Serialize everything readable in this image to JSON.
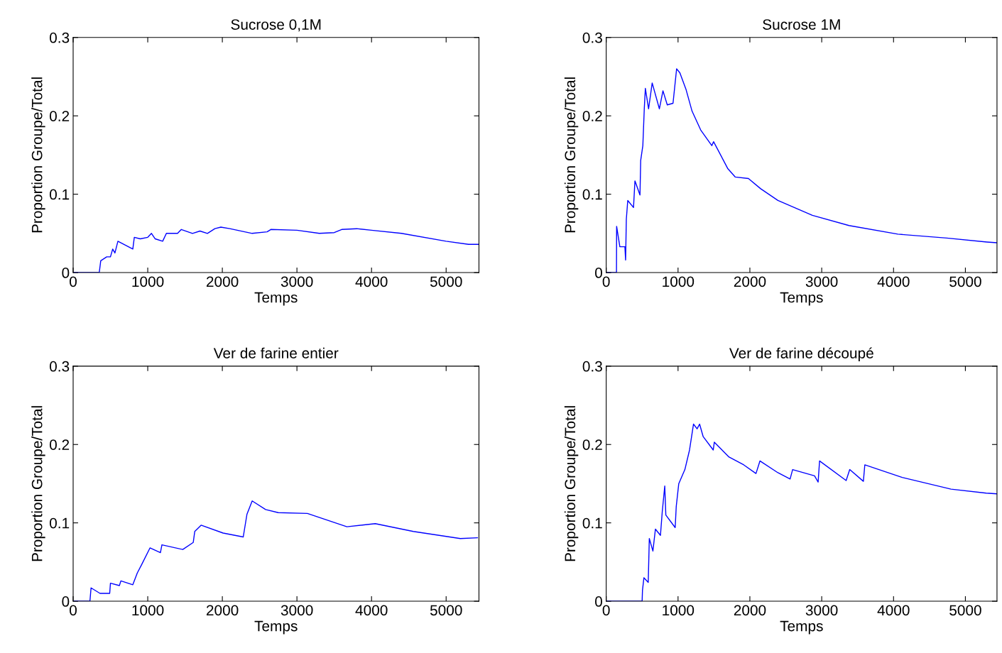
{
  "chart_data": [
    {
      "type": "line",
      "title": "Sucrose 0,1M",
      "xlabel": "Temps",
      "ylabel": "Proportion Groupe/Total",
      "xlim": [
        0,
        5440
      ],
      "xticks": [
        0,
        1000,
        2000,
        3000,
        4000,
        5000
      ],
      "ylim": [
        0,
        0.3
      ],
      "yticks": [
        0,
        0.1,
        0.2,
        0.3
      ],
      "grid": false,
      "legend": false,
      "series": [
        {
          "color": "#0000ff",
          "x": [
            0,
            350,
            370,
            450,
            500,
            530,
            560,
            600,
            700,
            800,
            820,
            900,
            1000,
            1050,
            1100,
            1200,
            1250,
            1400,
            1450,
            1600,
            1700,
            1800,
            1900,
            1980,
            2100,
            2400,
            2600,
            2650,
            3000,
            3300,
            3500,
            3600,
            3800,
            4000,
            4400,
            5000,
            5300,
            5440
          ],
          "values": [
            0,
            0,
            0.015,
            0.02,
            0.02,
            0.03,
            0.025,
            0.04,
            0.035,
            0.03,
            0.045,
            0.043,
            0.045,
            0.05,
            0.043,
            0.04,
            0.05,
            0.05,
            0.055,
            0.05,
            0.053,
            0.05,
            0.056,
            0.058,
            0.056,
            0.05,
            0.052,
            0.055,
            0.054,
            0.05,
            0.051,
            0.055,
            0.056,
            0.054,
            0.05,
            0.04,
            0.036,
            0.036
          ]
        }
      ]
    },
    {
      "type": "line",
      "title": "Sucrose 1M",
      "xlabel": "Temps",
      "ylabel": "Proportion Groupe/Total",
      "xlim": [
        0,
        5440
      ],
      "xticks": [
        0,
        1000,
        2000,
        3000,
        4000,
        5000
      ],
      "ylim": [
        0,
        0.3
      ],
      "yticks": [
        0,
        0.1,
        0.2,
        0.3
      ],
      "grid": false,
      "legend": false,
      "series": [
        {
          "color": "#0000ff",
          "x": [
            0,
            143,
            145,
            190,
            260,
            270,
            280,
            300,
            380,
            400,
            470,
            480,
            510,
            530,
            545,
            590,
            640,
            740,
            790,
            850,
            930,
            980,
            1025,
            1110,
            1195,
            1315,
            1470,
            1495,
            1690,
            1795,
            1980,
            2150,
            2390,
            2870,
            3380,
            4060,
            4740,
            5300,
            5440
          ],
          "values": [
            0,
            0,
            0.059,
            0.033,
            0.033,
            0.016,
            0.068,
            0.092,
            0.083,
            0.117,
            0.099,
            0.143,
            0.162,
            0.209,
            0.235,
            0.209,
            0.242,
            0.209,
            0.232,
            0.214,
            0.216,
            0.26,
            0.255,
            0.234,
            0.206,
            0.182,
            0.162,
            0.167,
            0.133,
            0.122,
            0.12,
            0.107,
            0.092,
            0.073,
            0.06,
            0.049,
            0.044,
            0.039,
            0.038
          ]
        }
      ]
    },
    {
      "type": "line",
      "title": "Ver de farine entier",
      "xlabel": "Temps",
      "ylabel": "Proportion Groupe/Total",
      "xlim": [
        0,
        5440
      ],
      "xticks": [
        0,
        1000,
        2000,
        3000,
        4000,
        5000
      ],
      "ylim": [
        0,
        0.3
      ],
      "yticks": [
        0,
        0.1,
        0.2,
        0.3
      ],
      "grid": false,
      "legend": false,
      "series": [
        {
          "color": "#0000ff",
          "x": [
            0,
            225,
            240,
            360,
            490,
            500,
            620,
            640,
            800,
            860,
            920,
            1030,
            1170,
            1190,
            1470,
            1610,
            1630,
            1715,
            2010,
            2280,
            2330,
            2400,
            2580,
            2750,
            3140,
            3670,
            4050,
            4560,
            5190,
            5420
          ],
          "values": [
            0,
            0,
            0.017,
            0.01,
            0.01,
            0.023,
            0.02,
            0.026,
            0.021,
            0.036,
            0.047,
            0.068,
            0.062,
            0.072,
            0.066,
            0.075,
            0.089,
            0.097,
            0.087,
            0.082,
            0.111,
            0.128,
            0.117,
            0.113,
            0.112,
            0.095,
            0.099,
            0.089,
            0.08,
            0.081
          ]
        }
      ]
    },
    {
      "type": "line",
      "title": "Ver de farine découpé",
      "xlabel": "Temps",
      "ylabel": "Proportion Groupe/Total",
      "xlim": [
        0,
        5440
      ],
      "xticks": [
        0,
        1000,
        2000,
        3000,
        4000,
        5000
      ],
      "ylim": [
        0,
        0.3
      ],
      "yticks": [
        0,
        0.1,
        0.2,
        0.3
      ],
      "grid": false,
      "legend": false,
      "series": [
        {
          "color": "#0000ff",
          "x": [
            0,
            500,
            505,
            525,
            585,
            600,
            650,
            685,
            755,
            780,
            815,
            830,
            960,
            975,
            1010,
            1095,
            1160,
            1215,
            1265,
            1300,
            1350,
            1490,
            1505,
            1710,
            1915,
            2085,
            2140,
            2390,
            2560,
            2595,
            2900,
            2950,
            2970,
            3340,
            3390,
            3580,
            3600,
            4120,
            4800,
            5290,
            5440
          ],
          "values": [
            0,
            0,
            0.014,
            0.03,
            0.024,
            0.08,
            0.064,
            0.092,
            0.084,
            0.114,
            0.147,
            0.11,
            0.094,
            0.121,
            0.15,
            0.168,
            0.193,
            0.226,
            0.22,
            0.226,
            0.21,
            0.193,
            0.203,
            0.184,
            0.174,
            0.163,
            0.179,
            0.164,
            0.156,
            0.168,
            0.16,
            0.152,
            0.179,
            0.154,
            0.168,
            0.153,
            0.174,
            0.158,
            0.143,
            0.138,
            0.137
          ]
        }
      ]
    }
  ]
}
